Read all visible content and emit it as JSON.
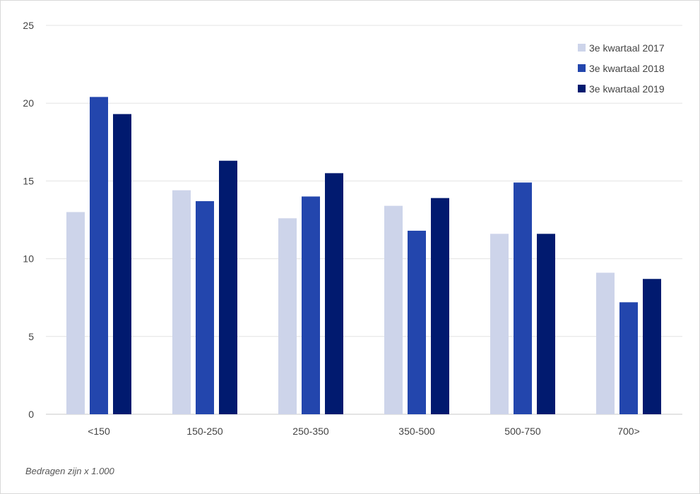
{
  "chart_data": {
    "type": "bar",
    "categories": [
      "<150",
      "150-250",
      "250-350",
      "350-500",
      "500-750",
      "700>"
    ],
    "series": [
      {
        "name": "3e kwartaal 2017",
        "color": "#cdd4ea",
        "values": [
          13.0,
          14.4,
          12.6,
          13.4,
          11.6,
          9.1
        ]
      },
      {
        "name": "3e kwartaal 2018",
        "color": "#2346ad",
        "values": [
          20.4,
          13.7,
          14.0,
          11.8,
          14.9,
          7.2
        ]
      },
      {
        "name": "3e kwartaal 2019",
        "color": "#011a6f",
        "values": [
          19.3,
          16.3,
          15.5,
          13.9,
          11.6,
          8.7
        ]
      }
    ],
    "ylim": [
      0,
      25
    ],
    "yticks": [
      0,
      5,
      10,
      15,
      20,
      25
    ],
    "grid": true,
    "legend_position": "top-right",
    "xlabel": "",
    "ylabel": "",
    "title": ""
  },
  "note": "Bedragen zijn x 1.000"
}
